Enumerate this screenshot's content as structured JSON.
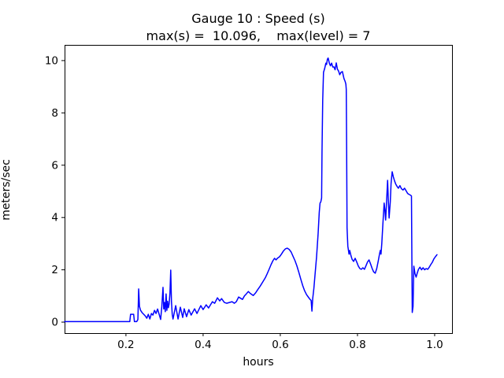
{
  "title": {
    "line1": "Gauge 10 : Speed (s)",
    "line2": "max(s) =  10.096,    max(level) = 7"
  },
  "chart_data": {
    "type": "line",
    "title": "Gauge 10 : Speed (s)",
    "subtitle": "max(s) =  10.096,    max(level) = 7",
    "xlabel": "hours",
    "ylabel": "meters/sec",
    "xlim": [
      0.041,
      1.045
    ],
    "ylim": [
      -0.42,
      10.6
    ],
    "xticks": [
      0.2,
      0.4,
      0.6,
      0.8,
      1.0
    ],
    "yticks": [
      0,
      2,
      4,
      6,
      8,
      10
    ],
    "grid": false,
    "legend": "none",
    "line_color": "#0000ff",
    "max_s": 10.096,
    "max_level": 7,
    "series": [
      {
        "name": "Speed (s)",
        "points": [
          [
            0.041,
            0.02
          ],
          [
            0.06,
            0.02
          ],
          [
            0.08,
            0.02
          ],
          [
            0.1,
            0.02
          ],
          [
            0.12,
            0.02
          ],
          [
            0.14,
            0.02
          ],
          [
            0.16,
            0.02
          ],
          [
            0.18,
            0.02
          ],
          [
            0.2,
            0.02
          ],
          [
            0.21,
            0.02
          ],
          [
            0.212,
            0.3
          ],
          [
            0.22,
            0.3
          ],
          [
            0.222,
            0.02
          ],
          [
            0.228,
            0.02
          ],
          [
            0.231,
            0.1
          ],
          [
            0.233,
            1.27
          ],
          [
            0.235,
            0.6
          ],
          [
            0.238,
            0.45
          ],
          [
            0.242,
            0.36
          ],
          [
            0.246,
            0.3
          ],
          [
            0.25,
            0.24
          ],
          [
            0.254,
            0.15
          ],
          [
            0.258,
            0.3
          ],
          [
            0.262,
            0.12
          ],
          [
            0.266,
            0.33
          ],
          [
            0.27,
            0.27
          ],
          [
            0.274,
            0.45
          ],
          [
            0.278,
            0.33
          ],
          [
            0.282,
            0.5
          ],
          [
            0.286,
            0.3
          ],
          [
            0.29,
            0.1
          ],
          [
            0.293,
            0.6
          ],
          [
            0.296,
            1.33
          ],
          [
            0.298,
            0.5
          ],
          [
            0.3,
            0.75
          ],
          [
            0.302,
            0.4
          ],
          [
            0.304,
            1.08
          ],
          [
            0.306,
            0.45
          ],
          [
            0.308,
            0.8
          ],
          [
            0.31,
            0.55
          ],
          [
            0.312,
            0.7
          ],
          [
            0.314,
            1.1
          ],
          [
            0.316,
            1.99
          ],
          [
            0.318,
            0.8
          ],
          [
            0.32,
            0.3
          ],
          [
            0.322,
            0.12
          ],
          [
            0.329,
            0.63
          ],
          [
            0.335,
            0.12
          ],
          [
            0.341,
            0.57
          ],
          [
            0.347,
            0.18
          ],
          [
            0.351,
            0.51
          ],
          [
            0.357,
            0.21
          ],
          [
            0.363,
            0.48
          ],
          [
            0.369,
            0.27
          ],
          [
            0.378,
            0.51
          ],
          [
            0.384,
            0.33
          ],
          [
            0.394,
            0.63
          ],
          [
            0.4,
            0.48
          ],
          [
            0.408,
            0.66
          ],
          [
            0.414,
            0.54
          ],
          [
            0.424,
            0.78
          ],
          [
            0.43,
            0.72
          ],
          [
            0.437,
            0.93
          ],
          [
            0.443,
            0.81
          ],
          [
            0.448,
            0.9
          ],
          [
            0.455,
            0.75
          ],
          [
            0.461,
            0.72
          ],
          [
            0.468,
            0.75
          ],
          [
            0.475,
            0.78
          ],
          [
            0.481,
            0.72
          ],
          [
            0.486,
            0.78
          ],
          [
            0.492,
            0.96
          ],
          [
            0.502,
            0.87
          ],
          [
            0.507,
            1.0
          ],
          [
            0.512,
            1.08
          ],
          [
            0.517,
            1.17
          ],
          [
            0.522,
            1.1
          ],
          [
            0.53,
            1.02
          ],
          [
            0.536,
            1.12
          ],
          [
            0.541,
            1.23
          ],
          [
            0.548,
            1.38
          ],
          [
            0.555,
            1.55
          ],
          [
            0.561,
            1.69
          ],
          [
            0.566,
            1.85
          ],
          [
            0.571,
            2.02
          ],
          [
            0.576,
            2.2
          ],
          [
            0.581,
            2.35
          ],
          [
            0.585,
            2.44
          ],
          [
            0.589,
            2.38
          ],
          [
            0.593,
            2.45
          ],
          [
            0.598,
            2.5
          ],
          [
            0.603,
            2.6
          ],
          [
            0.608,
            2.72
          ],
          [
            0.613,
            2.8
          ],
          [
            0.618,
            2.83
          ],
          [
            0.623,
            2.78
          ],
          [
            0.628,
            2.68
          ],
          [
            0.633,
            2.52
          ],
          [
            0.638,
            2.35
          ],
          [
            0.643,
            2.15
          ],
          [
            0.648,
            1.9
          ],
          [
            0.653,
            1.65
          ],
          [
            0.658,
            1.4
          ],
          [
            0.663,
            1.2
          ],
          [
            0.668,
            1.05
          ],
          [
            0.673,
            0.95
          ],
          [
            0.677,
            0.87
          ],
          [
            0.68,
            0.83
          ],
          [
            0.682,
            0.42
          ],
          [
            0.684,
            0.9
          ],
          [
            0.687,
            1.3
          ],
          [
            0.69,
            1.8
          ],
          [
            0.694,
            2.5
          ],
          [
            0.698,
            3.4
          ],
          [
            0.701,
            4.2
          ],
          [
            0.703,
            4.55
          ],
          [
            0.705,
            4.6
          ],
          [
            0.707,
            4.75
          ],
          [
            0.708,
            6.5
          ],
          [
            0.71,
            8.5
          ],
          [
            0.712,
            9.55
          ],
          [
            0.715,
            9.7
          ],
          [
            0.718,
            9.9
          ],
          [
            0.72,
            9.85
          ],
          [
            0.722,
            10.05
          ],
          [
            0.724,
            10.096
          ],
          [
            0.727,
            9.9
          ],
          [
            0.73,
            9.8
          ],
          [
            0.733,
            9.9
          ],
          [
            0.736,
            9.75
          ],
          [
            0.739,
            9.76
          ],
          [
            0.742,
            9.65
          ],
          [
            0.745,
            9.91
          ],
          [
            0.748,
            9.67
          ],
          [
            0.751,
            9.6
          ],
          [
            0.754,
            9.46
          ],
          [
            0.757,
            9.55
          ],
          [
            0.761,
            9.58
          ],
          [
            0.765,
            9.31
          ],
          [
            0.768,
            9.2
          ],
          [
            0.77,
            9.1
          ],
          [
            0.771,
            8.9
          ],
          [
            0.772,
            6.5
          ],
          [
            0.773,
            3.6
          ],
          [
            0.775,
            2.9
          ],
          [
            0.778,
            2.6
          ],
          [
            0.78,
            2.74
          ],
          [
            0.783,
            2.55
          ],
          [
            0.786,
            2.4
          ],
          [
            0.79,
            2.32
          ],
          [
            0.794,
            2.44
          ],
          [
            0.798,
            2.3
          ],
          [
            0.802,
            2.15
          ],
          [
            0.806,
            2.05
          ],
          [
            0.81,
            2.02
          ],
          [
            0.814,
            2.08
          ],
          [
            0.818,
            2.02
          ],
          [
            0.822,
            2.15
          ],
          [
            0.826,
            2.3
          ],
          [
            0.83,
            2.38
          ],
          [
            0.834,
            2.22
          ],
          [
            0.838,
            2.05
          ],
          [
            0.842,
            1.92
          ],
          [
            0.846,
            1.87
          ],
          [
            0.85,
            2.05
          ],
          [
            0.854,
            2.35
          ],
          [
            0.857,
            2.6
          ],
          [
            0.859,
            2.74
          ],
          [
            0.861,
            2.6
          ],
          [
            0.863,
            3.0
          ],
          [
            0.866,
            3.8
          ],
          [
            0.869,
            4.55
          ],
          [
            0.871,
            4.3
          ],
          [
            0.873,
            3.9
          ],
          [
            0.876,
            4.8
          ],
          [
            0.878,
            5.42
          ],
          [
            0.88,
            4.7
          ],
          [
            0.882,
            3.98
          ],
          [
            0.885,
            4.6
          ],
          [
            0.887,
            5.3
          ],
          [
            0.89,
            5.75
          ],
          [
            0.893,
            5.55
          ],
          [
            0.896,
            5.4
          ],
          [
            0.899,
            5.28
          ],
          [
            0.903,
            5.18
          ],
          [
            0.906,
            5.12
          ],
          [
            0.91,
            5.22
          ],
          [
            0.914,
            5.1
          ],
          [
            0.918,
            5.05
          ],
          [
            0.922,
            5.12
          ],
          [
            0.926,
            5.02
          ],
          [
            0.93,
            4.92
          ],
          [
            0.934,
            4.88
          ],
          [
            0.938,
            4.85
          ],
          [
            0.94,
            4.82
          ],
          [
            0.941,
            2.5
          ],
          [
            0.942,
            0.37
          ],
          [
            0.944,
            0.6
          ],
          [
            0.946,
            2.14
          ],
          [
            0.949,
            1.85
          ],
          [
            0.952,
            1.72
          ],
          [
            0.955,
            1.88
          ],
          [
            0.958,
            2.02
          ],
          [
            0.962,
            2.1
          ],
          [
            0.966,
            2.0
          ],
          [
            0.97,
            2.08
          ],
          [
            0.974,
            2.0
          ],
          [
            0.978,
            2.05
          ],
          [
            0.982,
            2.02
          ],
          [
            0.986,
            2.1
          ],
          [
            0.99,
            2.2
          ],
          [
            0.994,
            2.29
          ],
          [
            0.998,
            2.42
          ],
          [
            1.002,
            2.5
          ],
          [
            1.006,
            2.58
          ]
        ]
      }
    ]
  }
}
